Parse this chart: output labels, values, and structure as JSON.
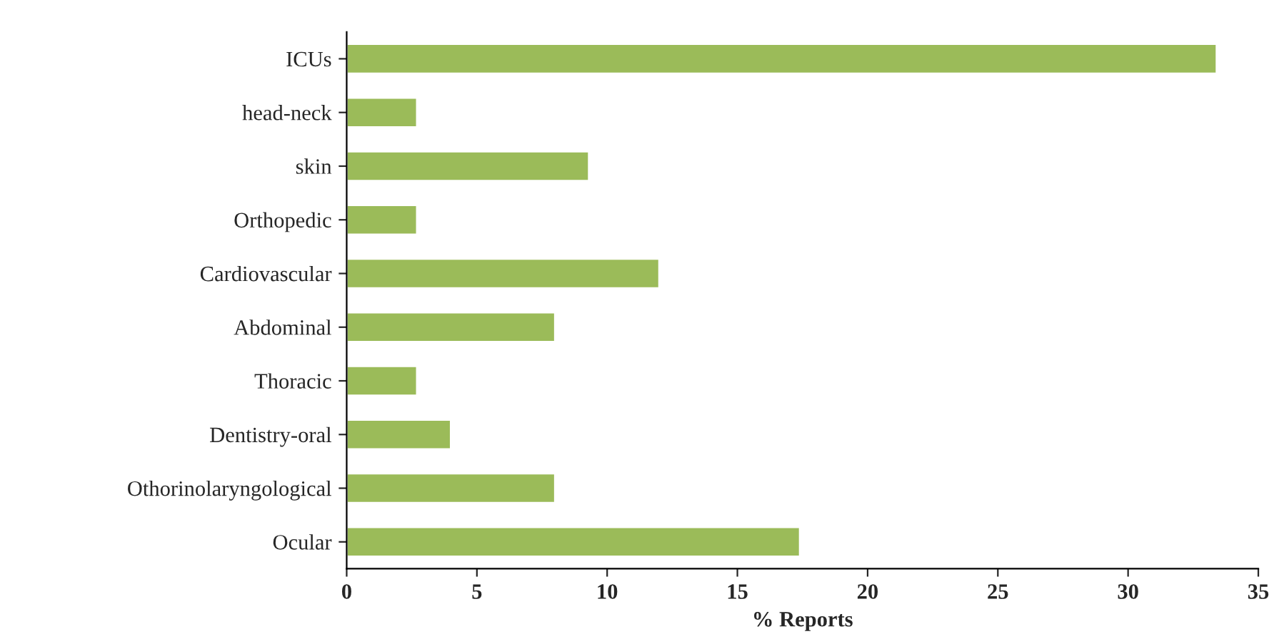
{
  "chart_data": {
    "type": "bar",
    "orientation": "horizontal",
    "xlabel": "% Reports",
    "categories": [
      "ICUs",
      "head-neck",
      "skin",
      "Orthopedic",
      "Cardiovascular",
      "Abdominal",
      "Thoracic",
      "Dentistry-oral",
      "Othorinolaryngological",
      "Ocular"
    ],
    "values": [
      33.4,
      2.7,
      9.3,
      2.7,
      12.0,
      8.0,
      2.7,
      4.0,
      8.0,
      17.4
    ],
    "color": "#9bbb59",
    "xlim": [
      0,
      35
    ],
    "xticks": [
      0,
      5,
      10,
      15,
      20,
      25,
      30,
      35
    ],
    "grid": false,
    "legend": false
  }
}
